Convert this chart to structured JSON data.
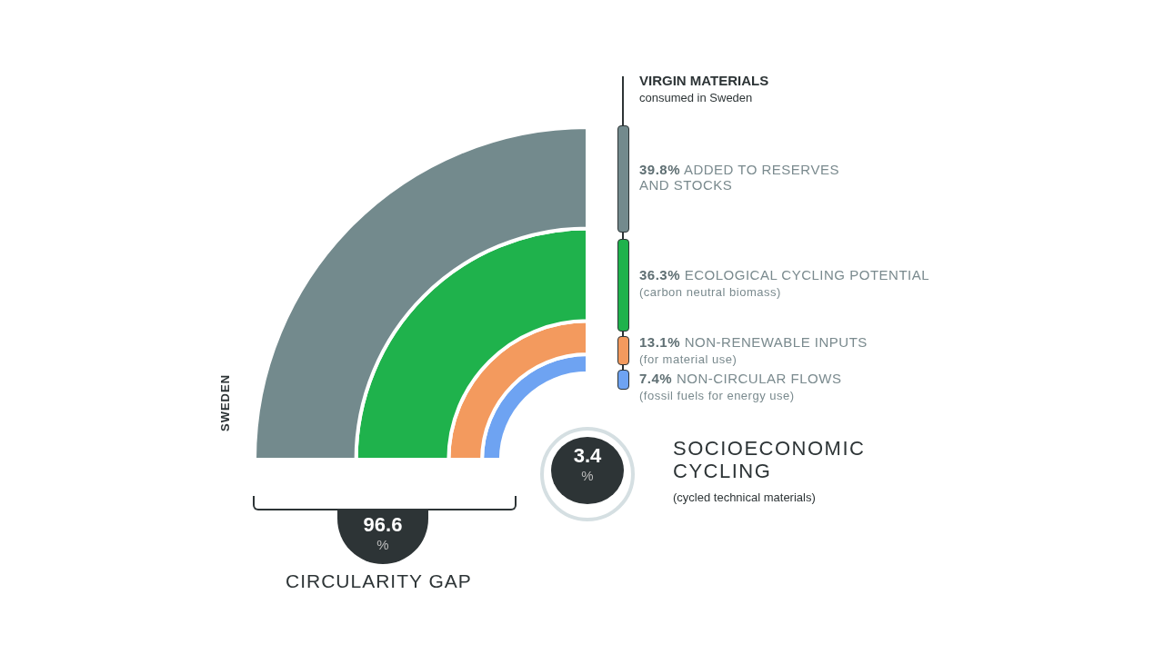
{
  "chart_data": {
    "type": "other",
    "title": "VIRGIN MATERIALS",
    "subtitle": "consumed in Sweden",
    "categories": [
      "ADDED TO RESERVES AND STOCKS",
      "ECOLOGICAL CYCLING POTENTIAL",
      "NON-RENEWABLE INPUTS",
      "NON-CIRCULAR FLOWS"
    ],
    "values": [
      39.8,
      36.3,
      13.1,
      7.4
    ],
    "value_labels": [
      "39.8%",
      "36.3%",
      "13.1%",
      "7.4%"
    ],
    "colors": [
      "#738a8d",
      "#1fb24c",
      "#f39a5e",
      "#6ea3f2"
    ],
    "annotations": [
      "(carbon neutral biomass)",
      "(for material use)",
      "(fossil fuels for energy use)",
      "SWEDEN",
      "96.6",
      "%",
      "CIRCULARITY GAP",
      "3.4",
      "%",
      "SOCIOECONOMIC CYCLING",
      "(cycled technical materials)"
    ]
  }
}
